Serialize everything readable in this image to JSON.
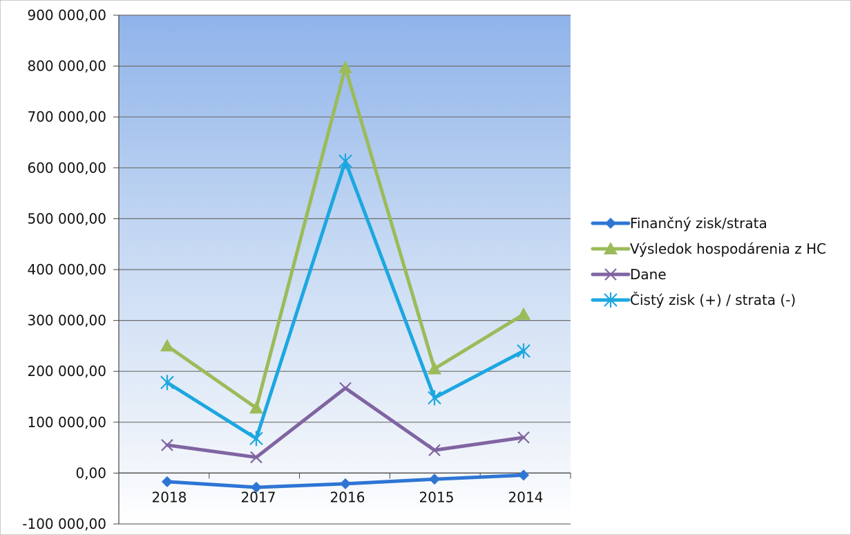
{
  "chart_data": {
    "type": "line",
    "categories": [
      "2018",
      "2017",
      "2016",
      "2015",
      "2014"
    ],
    "ylim": [
      -100000,
      900000
    ],
    "y_ticks": [
      "900 000,00",
      "800 000,00",
      "700 000,00",
      "600 000,00",
      "500 000,00",
      "400 000,00",
      "300 000,00",
      "200 000,00",
      "100 000,00",
      "0,00",
      "-100 000,00"
    ],
    "grid": true,
    "legend_position": "right",
    "series": [
      {
        "name": "Finančný zisk/strata",
        "values": [
          -17000,
          -28000,
          -21000,
          -12000,
          -4000
        ],
        "color": "#2e75d4",
        "marker": "diamond"
      },
      {
        "name": "Výsledok hospodárenia z HC",
        "values": [
          250000,
          128000,
          797000,
          205000,
          312000
        ],
        "color": "#9bbb59",
        "marker": "triangle"
      },
      {
        "name": "Dane",
        "values": [
          55000,
          31000,
          167000,
          45000,
          70000
        ],
        "color": "#8064a2",
        "marker": "x"
      },
      {
        "name": "Čistý zisk (+) / strata (-)",
        "values": [
          178000,
          68000,
          613000,
          148000,
          240000
        ],
        "color": "#1ca7e0",
        "marker": "star"
      }
    ]
  }
}
